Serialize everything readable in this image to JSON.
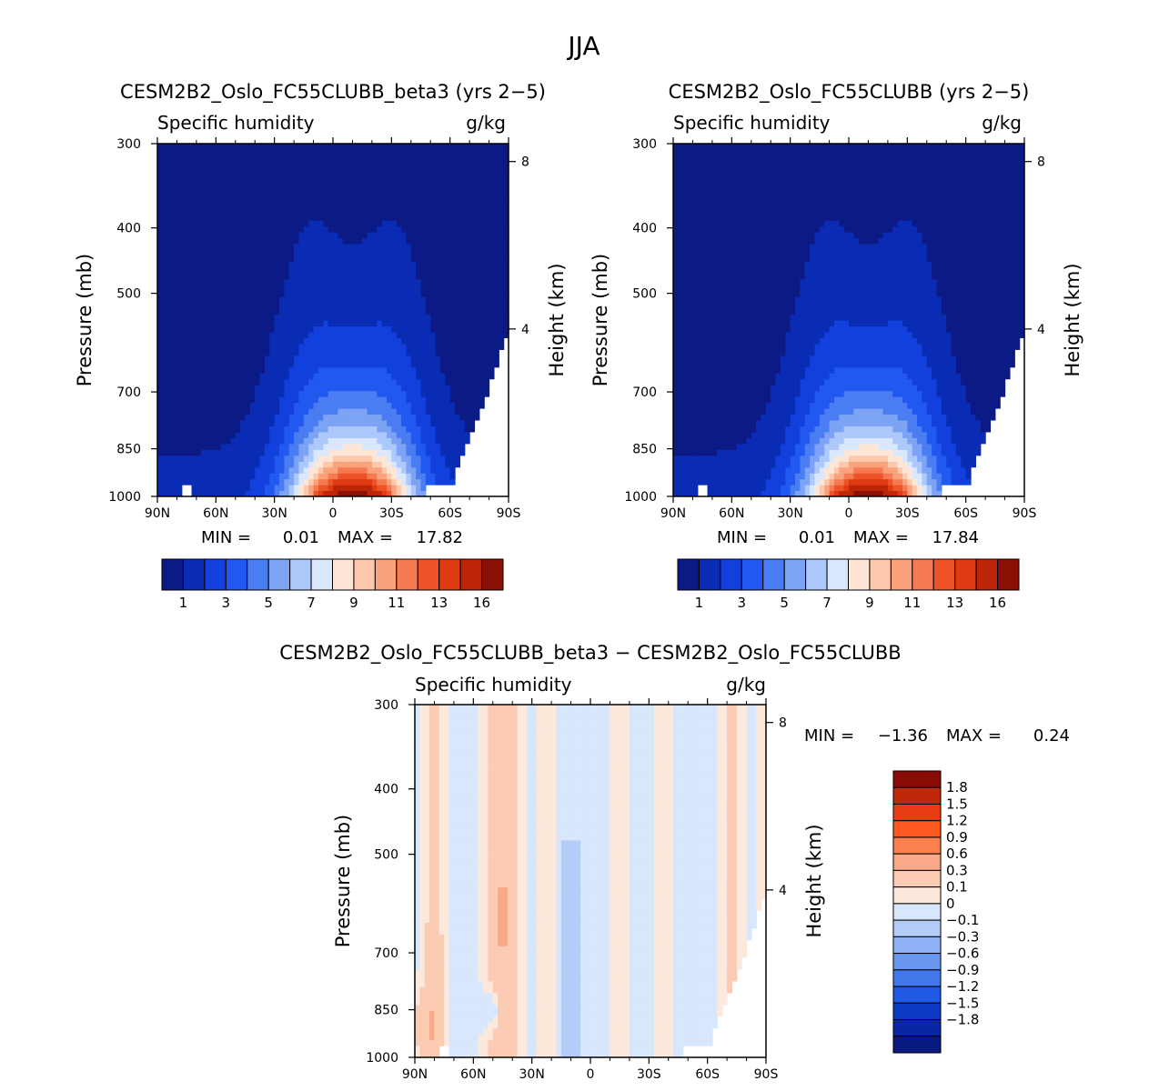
{
  "page_title": "JJA",
  "colors": {
    "abs_palette": [
      "#0c1a86",
      "#0a2cb4",
      "#1240dc",
      "#2058f0",
      "#4a7df2",
      "#7da3f5",
      "#adc8fa",
      "#d9e8fd",
      "#fde6d6",
      "#fdc8ac",
      "#f9a27c",
      "#f57a52",
      "#ee5228",
      "#df3a12",
      "#bc2607",
      "#8a1006"
    ],
    "diff_palette": [
      "#8a0c06",
      "#c0280a",
      "#e83c14",
      "#ff5a20",
      "#fc8050",
      "#f9a888",
      "#fccbb4",
      "#fde9db",
      "#d8e7fb",
      "#b4cdf8",
      "#8db1f4",
      "#6996ef",
      "#4378eb",
      "#1f58e3",
      "#0c3ac4",
      "#0a26a2",
      "#081a80"
    ]
  },
  "chart_data": [
    {
      "id": "panel_left",
      "type": "contour",
      "title": "CESM2B2_Oslo_FC55CLUBB_beta3 (yrs 2−5)",
      "variable": "Specific humidity",
      "units": "g/kg",
      "ylabel": "Pressure (mb)",
      "ylabel_right": "Height (km)",
      "x_ticks": [
        "90N",
        "60N",
        "30N",
        "0",
        "30S",
        "60S",
        "90S"
      ],
      "y_ticks": [
        "300",
        "400",
        "500",
        "700",
        "850",
        "1000"
      ],
      "y_ticks_right": [
        "8",
        "4"
      ],
      "xlim": [
        90,
        -90
      ],
      "ylim_mb": [
        1000,
        300
      ],
      "min_label": "MIN =",
      "min_value": "0.01",
      "max_label": "MAX =",
      "max_value": "17.82",
      "peak_lat": -10,
      "peak_value": 17.82,
      "colorbar_labels": [
        "1",
        "3",
        "5",
        "7",
        "9",
        "11",
        "13",
        "16"
      ]
    },
    {
      "id": "panel_right",
      "type": "contour",
      "title": "CESM2B2_Oslo_FC55CLUBB (yrs 2−5)",
      "variable": "Specific humidity",
      "units": "g/kg",
      "ylabel": "Pressure (mb)",
      "ylabel_right": "Height (km)",
      "x_ticks": [
        "90N",
        "60N",
        "30N",
        "0",
        "30S",
        "60S",
        "90S"
      ],
      "y_ticks": [
        "300",
        "400",
        "500",
        "700",
        "850",
        "1000"
      ],
      "y_ticks_right": [
        "8",
        "4"
      ],
      "xlim": [
        90,
        -90
      ],
      "ylim_mb": [
        1000,
        300
      ],
      "min_label": "MIN =",
      "min_value": "0.01",
      "max_label": "MAX =",
      "max_value": "17.84",
      "peak_lat": -10,
      "peak_value": 17.84,
      "colorbar_labels": [
        "1",
        "3",
        "5",
        "7",
        "9",
        "11",
        "13",
        "16"
      ]
    },
    {
      "id": "panel_diff",
      "type": "contour",
      "title": "CESM2B2_Oslo_FC55CLUBB_beta3 − CESM2B2_Oslo_FC55CLUBB",
      "variable": "Specific humidity",
      "units": "g/kg",
      "ylabel": "Pressure (mb)",
      "ylabel_right": "Height (km)",
      "x_ticks": [
        "90N",
        "60N",
        "30N",
        "0",
        "30S",
        "60S",
        "90S"
      ],
      "y_ticks": [
        "300",
        "400",
        "500",
        "700",
        "850",
        "1000"
      ],
      "y_ticks_right": [
        "8",
        "4"
      ],
      "xlim": [
        90,
        -90
      ],
      "ylim_mb": [
        1000,
        300
      ],
      "min_label": "MIN =",
      "min_value": "−1.36",
      "max_label": "MAX =",
      "max_value": "0.24",
      "colorbar_labels": [
        "1.8",
        "1.5",
        "1.2",
        "0.9",
        "0.6",
        "0.3",
        "0.1",
        "0",
        "−0.1",
        "−0.3",
        "−0.6",
        "−0.9",
        "−1.2",
        "−1.5",
        "−1.8"
      ]
    }
  ]
}
